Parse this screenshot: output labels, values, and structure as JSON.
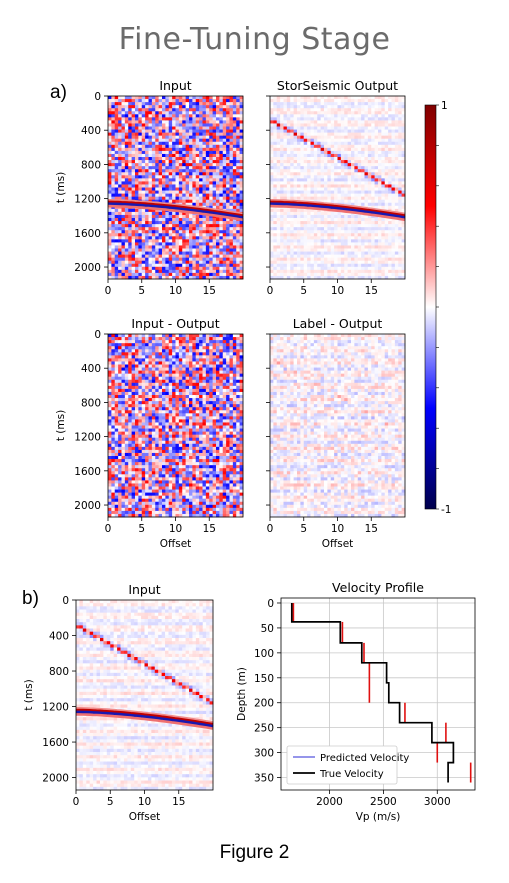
{
  "figure": {
    "title": "Fine-Tuning Stage",
    "caption": "Figure 2",
    "label_a": "a)",
    "label_b": "b)"
  },
  "chart_data": [
    {
      "type": "heatmap",
      "title": "Input",
      "xlabel": "",
      "ylabel": "t (ms)",
      "x_ticks": [
        0,
        5,
        10,
        15
      ],
      "y_ticks": [
        0,
        400,
        800,
        1200,
        1600,
        2000
      ],
      "xlim": [
        0,
        20
      ],
      "ylim": [
        2140,
        0
      ],
      "features": {
        "noise": 0.55,
        "direct_wave": 0.5,
        "reflection": 1.0,
        "reflection_t0_ms": 1260,
        "reflection_t_end_ms": 1420
      }
    },
    {
      "type": "heatmap",
      "title": "StorSeismic Output",
      "xlabel": "",
      "ylabel": "",
      "x_ticks": [
        0,
        5,
        10,
        15
      ],
      "y_ticks": [
        0,
        400,
        800,
        1200,
        1600,
        2000
      ],
      "xlim": [
        0,
        20
      ],
      "ylim": [
        2140,
        0
      ],
      "features": {
        "noise": 0.05,
        "direct_wave": 0.8,
        "reflection": 1.0,
        "reflection_t0_ms": 1260,
        "reflection_t_end_ms": 1420
      }
    },
    {
      "type": "heatmap",
      "title": "Input - Output",
      "xlabel": "Offset",
      "ylabel": "t (ms)",
      "x_ticks": [
        0,
        5,
        10,
        15
      ],
      "y_ticks": [
        0,
        400,
        800,
        1200,
        1600,
        2000
      ],
      "xlim": [
        0,
        20
      ],
      "ylim": [
        2140,
        0
      ],
      "features": {
        "noise": 0.55,
        "direct_wave": 0.05,
        "reflection": 0.0
      }
    },
    {
      "type": "heatmap",
      "title": "Label - Output",
      "xlabel": "Offset",
      "ylabel": "",
      "x_ticks": [
        0,
        5,
        10,
        15
      ],
      "y_ticks": [
        0,
        400,
        800,
        1200,
        1600,
        2000
      ],
      "xlim": [
        0,
        20
      ],
      "ylim": [
        2140,
        0
      ],
      "features": {
        "noise": 0.1,
        "direct_wave": 0.12,
        "reflection": 0.0
      }
    },
    {
      "type": "colorbar",
      "colormap": "seismic",
      "range": [
        -1,
        1
      ],
      "tick_labels": [
        "1",
        "-1"
      ],
      "colors": {
        "low": "#00004c",
        "mid": "#ffffff",
        "high": "#800000"
      }
    },
    {
      "type": "heatmap",
      "title": "Input",
      "xlabel": "Offset",
      "ylabel": "t (ms)",
      "x_ticks": [
        0,
        5,
        10,
        15
      ],
      "y_ticks": [
        0,
        400,
        800,
        1200,
        1600,
        2000
      ],
      "xlim": [
        0,
        20
      ],
      "ylim": [
        2140,
        0
      ],
      "features": {
        "noise": 0.05,
        "direct_wave": 0.8,
        "reflection": 1.0,
        "reflection_t0_ms": 1260,
        "reflection_t_end_ms": 1420
      }
    },
    {
      "type": "line",
      "title": "Velocity Profile",
      "xlabel": "Vp (m/s)",
      "ylabel": "Depth (m)",
      "xlim": [
        1550,
        3350
      ],
      "ylim": [
        375,
        -10
      ],
      "x_ticks": [
        2000,
        2500,
        3000
      ],
      "y_ticks": [
        0,
        50,
        100,
        150,
        200,
        250,
        300,
        350
      ],
      "grid": true,
      "legend_position": "bottom-left",
      "series": [
        {
          "name": "True Velocity",
          "color": "#000000",
          "x": [
            1650,
            1650,
            2100,
            2100,
            2300,
            2300,
            2530,
            2530,
            2550,
            2550,
            2650,
            2650,
            2950,
            2950,
            3150,
            3150,
            3100,
            3100
          ],
          "y": [
            0,
            38,
            38,
            80,
            80,
            120,
            120,
            160,
            160,
            200,
            200,
            240,
            240,
            280,
            280,
            320,
            320,
            360
          ]
        },
        {
          "name": "Predicted Velocity",
          "color": "#2b2bd6",
          "segment_color": "#e01010",
          "segments": [
            {
              "v": 1665,
              "d0": 0,
              "d1": 38
            },
            {
              "v": 2120,
              "d0": 38,
              "d1": 80
            },
            {
              "v": 2320,
              "d0": 80,
              "d1": 120
            },
            {
              "v": 2370,
              "d0": 120,
              "d1": 200
            },
            {
              "v": 2700,
              "d0": 200,
              "d1": 240
            },
            {
              "v": 3080,
              "d0": 240,
              "d1": 280
            },
            {
              "v": 3000,
              "d0": 280,
              "d1": 320
            },
            {
              "v": 3310,
              "d0": 320,
              "d1": 360
            }
          ]
        }
      ],
      "legend": [
        "Predicted Velocity",
        "True Velocity"
      ]
    }
  ]
}
